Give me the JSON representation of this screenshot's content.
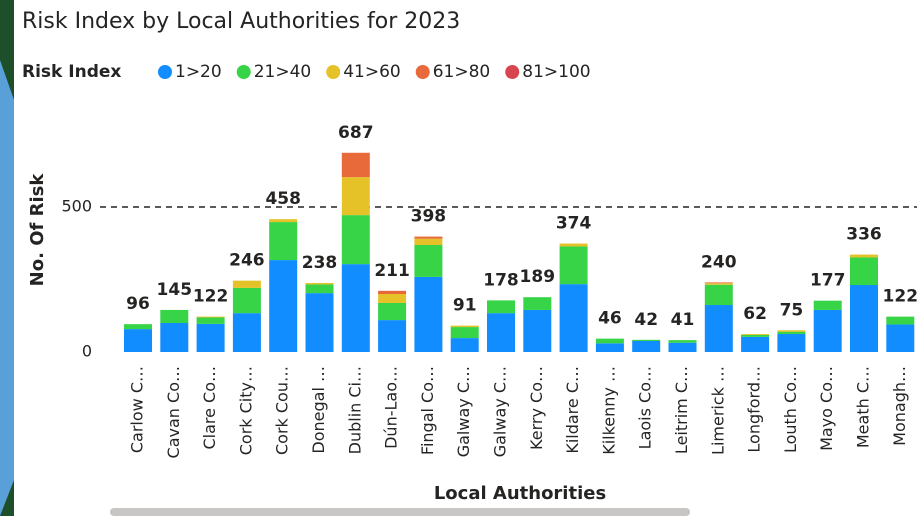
{
  "chart_data": {
    "type": "stacked_bar",
    "title": "Risk Index by Local Authorities for 2023",
    "legend_title": "Risk Index",
    "x_label": "Local Authorities",
    "y_label": "No. Of Risk",
    "categories": [
      "Carlow C…",
      "Cavan Co…",
      "Clare Co…",
      "Cork City…",
      "Cork Cou…",
      "Donegal …",
      "Dublin Ci…",
      "Dún-Lao…",
      "Fingal Co…",
      "Galway C…",
      "Galway C…",
      "Kerry Co…",
      "Kildare C…",
      "Kilkenny …",
      "Laois Co…",
      "Leitrim C…",
      "Limerick …",
      "Longford…",
      "Louth Co…",
      "Mayo Co…",
      "Meath C…",
      "Monagh…"
    ],
    "series": [
      {
        "name": "1>20",
        "color": "#118dff",
        "values": [
          79,
          100,
          97,
          134,
          317,
          203,
          303,
          110,
          259,
          48,
          134,
          145,
          234,
          30,
          38,
          32,
          162,
          52,
          62,
          145,
          231,
          95
        ]
      },
      {
        "name": "21>40",
        "color": "#37d448",
        "values": [
          17,
          45,
          22,
          87,
          131,
          30,
          169,
          59,
          110,
          38,
          44,
          44,
          130,
          16,
          4,
          9,
          70,
          7,
          8,
          32,
          95,
          27
        ]
      },
      {
        "name": "41>60",
        "color": "#e6c229",
        "values": [
          0,
          0,
          3,
          25,
          10,
          5,
          131,
          31,
          22,
          5,
          0,
          0,
          10,
          0,
          0,
          0,
          5,
          3,
          5,
          0,
          10,
          0
        ]
      },
      {
        "name": "61>80",
        "color": "#e8693a",
        "values": [
          0,
          0,
          0,
          0,
          0,
          0,
          84,
          11,
          7,
          0,
          0,
          0,
          0,
          0,
          0,
          0,
          3,
          0,
          0,
          0,
          0,
          0
        ]
      },
      {
        "name": "81>100",
        "color": "#d64550",
        "values": [
          0,
          0,
          0,
          0,
          0,
          0,
          0,
          0,
          0,
          0,
          0,
          0,
          0,
          0,
          0,
          0,
          0,
          0,
          0,
          0,
          0,
          0
        ]
      }
    ],
    "totals": [
      96,
      145,
      122,
      246,
      458,
      238,
      687,
      211,
      398,
      91,
      178,
      189,
      374,
      46,
      42,
      41,
      240,
      62,
      75,
      177,
      336,
      122
    ],
    "ylim": [
      0,
      700
    ],
    "yticks": [
      0,
      500
    ],
    "grid": true
  }
}
